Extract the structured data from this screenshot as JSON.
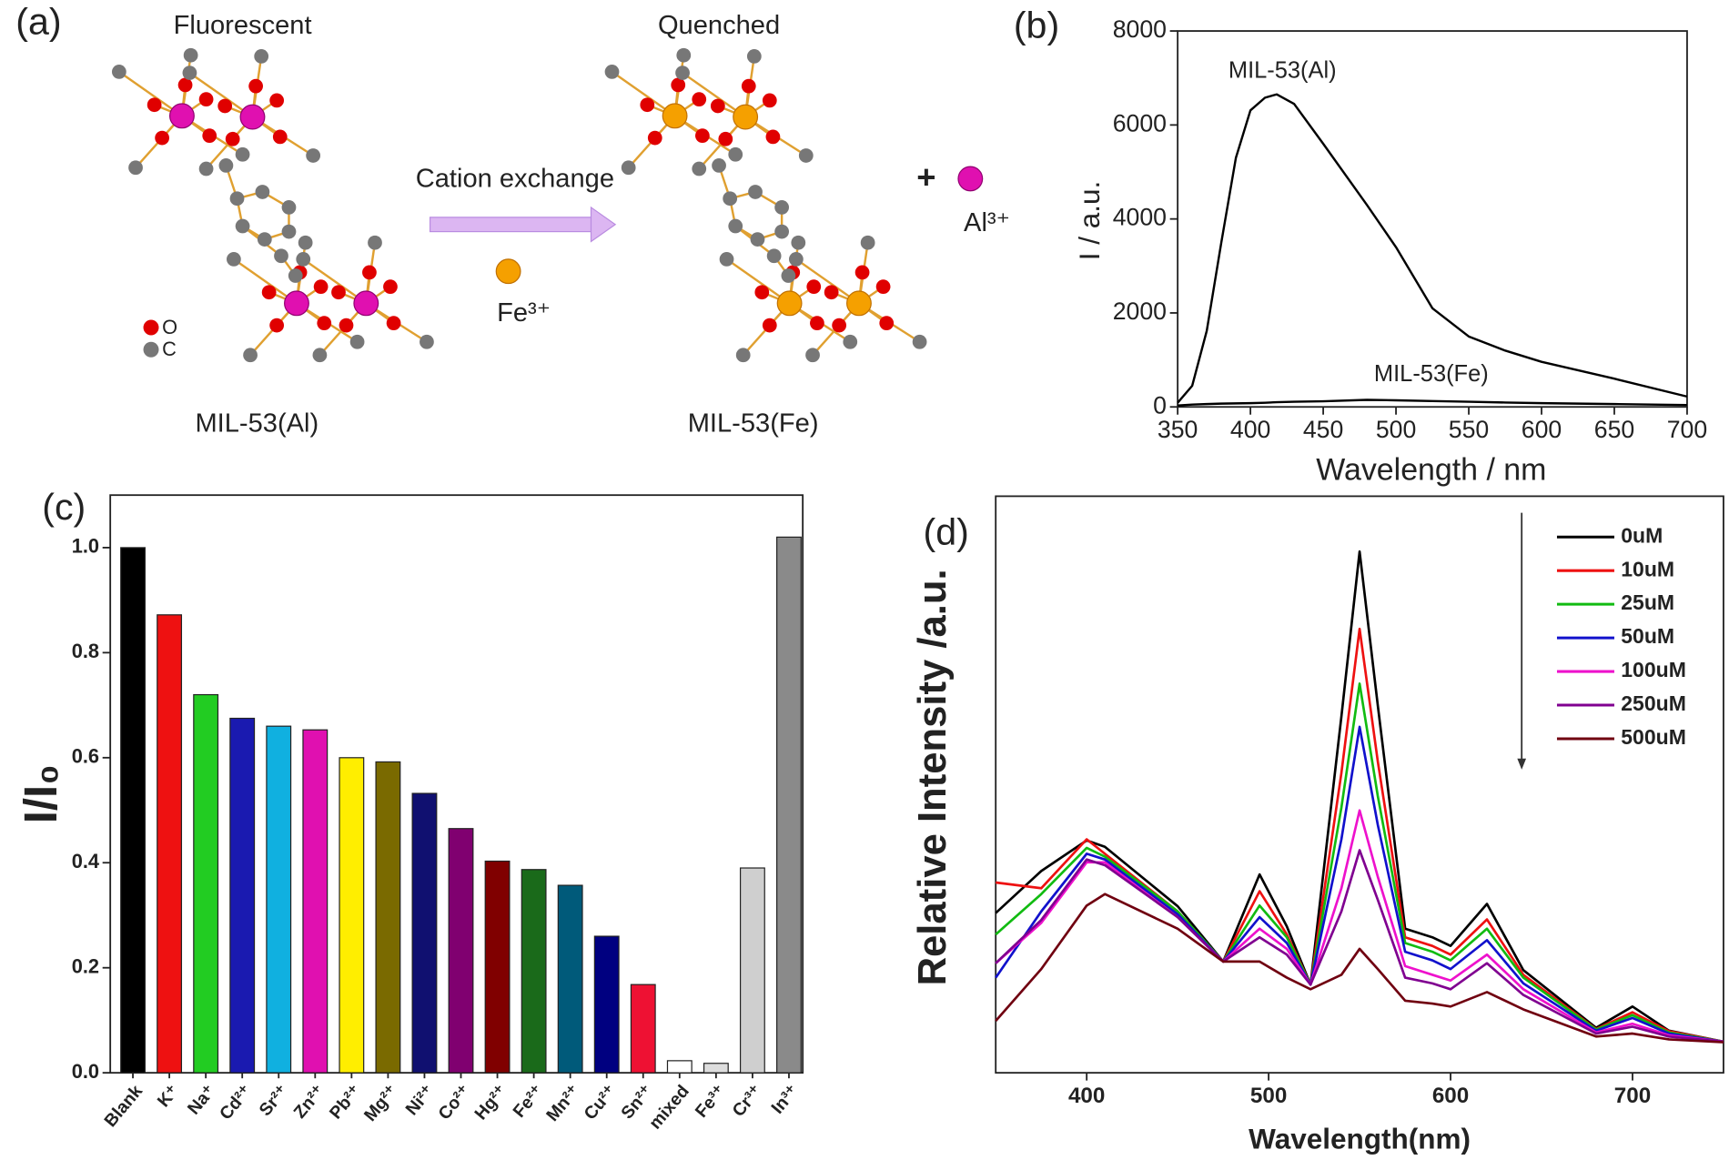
{
  "diagram": {
    "panel": "(a)",
    "left_label": "Fluorescent",
    "right_label": "Quenched",
    "arrow_label": "Cation exchange",
    "ion_in": "Fe³⁺",
    "ion_out": "Al³⁺",
    "plus": "+",
    "legend_o": "O",
    "legend_c": "C",
    "left_name": "MIL-53(Al)",
    "right_name": "MIL-53(Fe)"
  },
  "chart_data": [
    {
      "type": "line",
      "panel": "(b)",
      "xlabel": "Wavelength / nm",
      "ylabel": "I / a.u.",
      "xlim": [
        350,
        700
      ],
      "ylim": [
        0,
        8000
      ],
      "xticks": [
        350,
        400,
        450,
        500,
        550,
        600,
        650,
        700
      ],
      "yticks": [
        0,
        2000,
        4000,
        6000,
        8000
      ],
      "x": [
        350,
        360,
        370,
        380,
        390,
        400,
        410,
        418,
        430,
        450,
        480,
        500,
        525,
        550,
        575,
        600,
        650,
        700
      ],
      "series": [
        {
          "name": "MIL-53(Al)",
          "color": "#000000",
          "values": [
            90,
            450,
            1620,
            3500,
            5300,
            6310,
            6580,
            6650,
            6450,
            5600,
            4300,
            3400,
            2100,
            1500,
            1200,
            960,
            600,
            220
          ]
        },
        {
          "name": "MIL-53(Fe)",
          "color": "#000000",
          "values": [
            30,
            50,
            60,
            70,
            75,
            80,
            90,
            100,
            110,
            120,
            150,
            140,
            125,
            110,
            95,
            80,
            60,
            40
          ]
        }
      ]
    },
    {
      "type": "bar",
      "panel": "(c)",
      "ylabel": "I/I₀",
      "ylim": [
        0,
        1.1
      ],
      "yticks": [
        {
          "value": 0,
          "label": "0.0"
        },
        {
          "value": 0.2,
          "label": "0.2"
        },
        {
          "value": 0.4,
          "label": "0.4"
        },
        {
          "value": 0.6,
          "label": "0.6"
        },
        {
          "value": 0.8,
          "label": "0.8"
        },
        {
          "value": 1,
          "label": "1.0"
        }
      ],
      "categories": [
        "Blank",
        "K⁺",
        "Na⁺",
        "Cd²⁺",
        "Sr²⁺",
        "Zn²⁺",
        "Pb²⁺",
        "Mg²⁺",
        "Ni²⁺",
        "Co²⁺",
        "Hg²⁺",
        "Fe²⁺",
        "Mn²⁺",
        "Cu²⁺",
        "Sn²⁺",
        "mixed",
        "Fe³⁺",
        "Cr³⁺",
        "In³⁺"
      ],
      "values": [
        1.0,
        0.872,
        0.72,
        0.675,
        0.66,
        0.653,
        0.6,
        0.592,
        0.532,
        0.465,
        0.403,
        0.387,
        0.357,
        0.26,
        0.168,
        0.023,
        0.018,
        0.39,
        1.02
      ],
      "colors": [
        "#000000",
        "#ee1111",
        "#22cc22",
        "#1a1ab0",
        "#10b0e0",
        "#e010b0",
        "#ffee00",
        "#7a6a00",
        "#101070",
        "#800070",
        "#800000",
        "#1a6a1a",
        "#005a7a",
        "#000080",
        "#ee1133",
        "#ffffff",
        "#dddddd",
        "#cfcfcf",
        "#8a8a8a"
      ]
    },
    {
      "type": "line",
      "panel": "(d)",
      "xlabel": "Wavelength(nm)",
      "ylabel": "Relative Intensity /a.u.",
      "xlim": [
        350,
        750
      ],
      "ylim": [
        0,
        100
      ],
      "xticks": [
        400,
        500,
        600,
        700
      ],
      "x": [
        350,
        375,
        400,
        410,
        450,
        475,
        495,
        510,
        523,
        540,
        550,
        560,
        575,
        590,
        600,
        620,
        640,
        680,
        700,
        720,
        750
      ],
      "series": [
        {
          "name": "0uM",
          "color": "#000000",
          "values": [
            27.7,
            35,
            40.3,
            39.2,
            28.9,
            19.3,
            34.4,
            25.4,
            15.3,
            61.8,
            90.4,
            63.7,
            25,
            23.5,
            22,
            29.3,
            17.8,
            7.8,
            11.5,
            7.3,
            5.4
          ]
        },
        {
          "name": "10uM",
          "color": "#ee1111",
          "values": [
            33,
            32,
            40.5,
            38,
            28,
            19.3,
            31.5,
            24,
            15.3,
            52,
            77,
            54,
            23.5,
            22,
            20.5,
            26.6,
            17,
            7.6,
            10.5,
            7.2,
            5.4
          ]
        },
        {
          "name": "25uM",
          "color": "#11bb11",
          "values": [
            24,
            31,
            39,
            37.5,
            28,
            19.3,
            29,
            23.5,
            15.3,
            46,
            67.5,
            48,
            22.5,
            21,
            19.5,
            25,
            16.5,
            7.5,
            10,
            7,
            5.4
          ]
        },
        {
          "name": "50uM",
          "color": "#1111cc",
          "values": [
            16.5,
            28,
            38,
            37,
            27.5,
            19.3,
            27,
            22.5,
            15.3,
            40.5,
            60,
            43,
            21,
            19.5,
            18,
            23,
            15.5,
            7.3,
            9.5,
            6.8,
            5.4
          ]
        },
        {
          "name": "100uM",
          "color": "#ee11cc",
          "values": [
            19,
            26,
            36.5,
            36.5,
            27,
            19.3,
            25,
            21.5,
            15.3,
            32,
            45.5,
            34,
            18.5,
            17,
            16,
            20.5,
            14.5,
            7,
            8.5,
            6.5,
            5.4
          ]
        },
        {
          "name": "250uM",
          "color": "#800090",
          "values": [
            19,
            26.5,
            37,
            36,
            27,
            19.3,
            23.5,
            20.5,
            15.3,
            28,
            38.6,
            30,
            16.5,
            15.5,
            14.5,
            19,
            13.5,
            6.8,
            8,
            6.3,
            5.4
          ]
        },
        {
          "name": "500uM",
          "color": "#700010",
          "values": [
            9,
            18,
            29,
            31,
            25,
            19.3,
            19.3,
            16.5,
            14.5,
            17,
            21.5,
            18,
            12.5,
            12,
            11.5,
            14,
            11,
            6.3,
            6.8,
            5.8,
            5.3
          ]
        }
      ]
    }
  ]
}
